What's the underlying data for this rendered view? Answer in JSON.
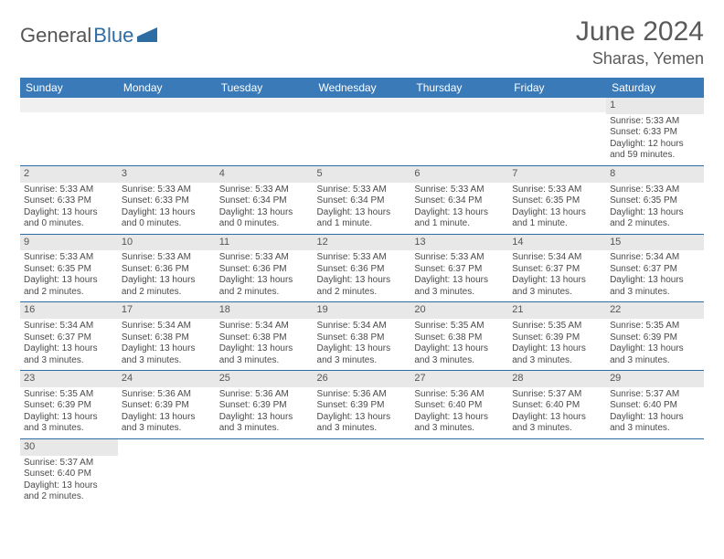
{
  "logo": {
    "text1": "General",
    "text2": "Blue"
  },
  "header": {
    "month_title": "June 2024",
    "location": "Sharas, Yemen"
  },
  "colors": {
    "header_bg": "#3a7ab8",
    "header_text": "#ffffff",
    "rule": "#2e6da4",
    "daynum_bg": "#e8e8e8",
    "text": "#4a4a4a"
  },
  "day_headers": [
    "Sunday",
    "Monday",
    "Tuesday",
    "Wednesday",
    "Thursday",
    "Friday",
    "Saturday"
  ],
  "weeks": [
    [
      null,
      null,
      null,
      null,
      null,
      null,
      {
        "n": "1",
        "sunrise": "5:33 AM",
        "sunset": "6:33 PM",
        "dl1": "Daylight: 12 hours",
        "dl2": "and 59 minutes."
      }
    ],
    [
      {
        "n": "2",
        "sunrise": "5:33 AM",
        "sunset": "6:33 PM",
        "dl1": "Daylight: 13 hours",
        "dl2": "and 0 minutes."
      },
      {
        "n": "3",
        "sunrise": "5:33 AM",
        "sunset": "6:33 PM",
        "dl1": "Daylight: 13 hours",
        "dl2": "and 0 minutes."
      },
      {
        "n": "4",
        "sunrise": "5:33 AM",
        "sunset": "6:34 PM",
        "dl1": "Daylight: 13 hours",
        "dl2": "and 0 minutes."
      },
      {
        "n": "5",
        "sunrise": "5:33 AM",
        "sunset": "6:34 PM",
        "dl1": "Daylight: 13 hours",
        "dl2": "and 1 minute."
      },
      {
        "n": "6",
        "sunrise": "5:33 AM",
        "sunset": "6:34 PM",
        "dl1": "Daylight: 13 hours",
        "dl2": "and 1 minute."
      },
      {
        "n": "7",
        "sunrise": "5:33 AM",
        "sunset": "6:35 PM",
        "dl1": "Daylight: 13 hours",
        "dl2": "and 1 minute."
      },
      {
        "n": "8",
        "sunrise": "5:33 AM",
        "sunset": "6:35 PM",
        "dl1": "Daylight: 13 hours",
        "dl2": "and 2 minutes."
      }
    ],
    [
      {
        "n": "9",
        "sunrise": "5:33 AM",
        "sunset": "6:35 PM",
        "dl1": "Daylight: 13 hours",
        "dl2": "and 2 minutes."
      },
      {
        "n": "10",
        "sunrise": "5:33 AM",
        "sunset": "6:36 PM",
        "dl1": "Daylight: 13 hours",
        "dl2": "and 2 minutes."
      },
      {
        "n": "11",
        "sunrise": "5:33 AM",
        "sunset": "6:36 PM",
        "dl1": "Daylight: 13 hours",
        "dl2": "and 2 minutes."
      },
      {
        "n": "12",
        "sunrise": "5:33 AM",
        "sunset": "6:36 PM",
        "dl1": "Daylight: 13 hours",
        "dl2": "and 2 minutes."
      },
      {
        "n": "13",
        "sunrise": "5:33 AM",
        "sunset": "6:37 PM",
        "dl1": "Daylight: 13 hours",
        "dl2": "and 3 minutes."
      },
      {
        "n": "14",
        "sunrise": "5:34 AM",
        "sunset": "6:37 PM",
        "dl1": "Daylight: 13 hours",
        "dl2": "and 3 minutes."
      },
      {
        "n": "15",
        "sunrise": "5:34 AM",
        "sunset": "6:37 PM",
        "dl1": "Daylight: 13 hours",
        "dl2": "and 3 minutes."
      }
    ],
    [
      {
        "n": "16",
        "sunrise": "5:34 AM",
        "sunset": "6:37 PM",
        "dl1": "Daylight: 13 hours",
        "dl2": "and 3 minutes."
      },
      {
        "n": "17",
        "sunrise": "5:34 AM",
        "sunset": "6:38 PM",
        "dl1": "Daylight: 13 hours",
        "dl2": "and 3 minutes."
      },
      {
        "n": "18",
        "sunrise": "5:34 AM",
        "sunset": "6:38 PM",
        "dl1": "Daylight: 13 hours",
        "dl2": "and 3 minutes."
      },
      {
        "n": "19",
        "sunrise": "5:34 AM",
        "sunset": "6:38 PM",
        "dl1": "Daylight: 13 hours",
        "dl2": "and 3 minutes."
      },
      {
        "n": "20",
        "sunrise": "5:35 AM",
        "sunset": "6:38 PM",
        "dl1": "Daylight: 13 hours",
        "dl2": "and 3 minutes."
      },
      {
        "n": "21",
        "sunrise": "5:35 AM",
        "sunset": "6:39 PM",
        "dl1": "Daylight: 13 hours",
        "dl2": "and 3 minutes."
      },
      {
        "n": "22",
        "sunrise": "5:35 AM",
        "sunset": "6:39 PM",
        "dl1": "Daylight: 13 hours",
        "dl2": "and 3 minutes."
      }
    ],
    [
      {
        "n": "23",
        "sunrise": "5:35 AM",
        "sunset": "6:39 PM",
        "dl1": "Daylight: 13 hours",
        "dl2": "and 3 minutes."
      },
      {
        "n": "24",
        "sunrise": "5:36 AM",
        "sunset": "6:39 PM",
        "dl1": "Daylight: 13 hours",
        "dl2": "and 3 minutes."
      },
      {
        "n": "25",
        "sunrise": "5:36 AM",
        "sunset": "6:39 PM",
        "dl1": "Daylight: 13 hours",
        "dl2": "and 3 minutes."
      },
      {
        "n": "26",
        "sunrise": "5:36 AM",
        "sunset": "6:39 PM",
        "dl1": "Daylight: 13 hours",
        "dl2": "and 3 minutes."
      },
      {
        "n": "27",
        "sunrise": "5:36 AM",
        "sunset": "6:40 PM",
        "dl1": "Daylight: 13 hours",
        "dl2": "and 3 minutes."
      },
      {
        "n": "28",
        "sunrise": "5:37 AM",
        "sunset": "6:40 PM",
        "dl1": "Daylight: 13 hours",
        "dl2": "and 3 minutes."
      },
      {
        "n": "29",
        "sunrise": "5:37 AM",
        "sunset": "6:40 PM",
        "dl1": "Daylight: 13 hours",
        "dl2": "and 3 minutes."
      }
    ],
    [
      {
        "n": "30",
        "sunrise": "5:37 AM",
        "sunset": "6:40 PM",
        "dl1": "Daylight: 13 hours",
        "dl2": "and 2 minutes."
      },
      null,
      null,
      null,
      null,
      null,
      null
    ]
  ],
  "labels": {
    "sunrise_prefix": "Sunrise: ",
    "sunset_prefix": "Sunset: "
  }
}
